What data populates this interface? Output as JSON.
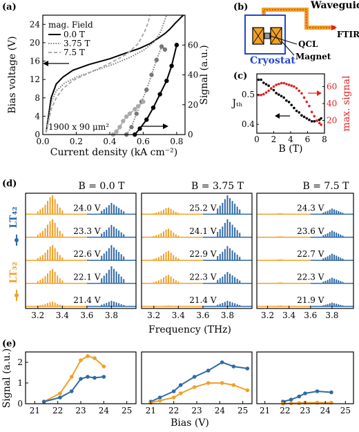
{
  "panel_labels": {
    "a": "(a)",
    "b": "(b)",
    "c": "(c)",
    "d": "(d)",
    "e": "(e)"
  },
  "chart_data": [
    {
      "id": "a",
      "type": "line",
      "xlabel": "Current density (kA cm⁻²)",
      "ylabel_left": "Bias voltage (V)",
      "ylabel_right": "Signal (a.u.)",
      "xlim": [
        0,
        0.85
      ],
      "ylim_left": [
        0,
        26
      ],
      "ylim_right": [
        0,
        80
      ],
      "xticks": [
        0.0,
        0.2,
        0.4,
        0.6,
        0.8
      ],
      "xtick_labels": [
        "0.0",
        "0.2",
        "0.4",
        "0.6",
        "0.8"
      ],
      "yticks_left": [
        0,
        4,
        8,
        12,
        16,
        20,
        24
      ],
      "yticks_right": [
        0,
        20,
        40,
        60
      ],
      "legend_title": "mag. Field",
      "annotation": "1900 x 90 μm²",
      "series": [
        {
          "name": "0.0 T",
          "color": "#000000",
          "dash": "solid",
          "axis": "left",
          "x": [
            0.02,
            0.05,
            0.08,
            0.12,
            0.18,
            0.28,
            0.4,
            0.5,
            0.58,
            0.64,
            0.69,
            0.73,
            0.76,
            0.79,
            0.82,
            0.84
          ],
          "y": [
            0.5,
            8,
            11,
            12.5,
            14,
            15.3,
            16.5,
            17.8,
            18.8,
            19.8,
            21,
            22,
            23,
            24.2,
            25.3,
            26
          ]
        },
        {
          "name": "3.75 T",
          "color": "#777777",
          "dash": "dotted",
          "axis": "left",
          "x": [
            0.02,
            0.05,
            0.08,
            0.13,
            0.2,
            0.3,
            0.42,
            0.52,
            0.6,
            0.66,
            0.7,
            0.72,
            0.74
          ],
          "y": [
            0.5,
            7,
            9.5,
            11.2,
            12.5,
            13.8,
            15.3,
            16.8,
            18.3,
            20,
            22,
            24,
            26
          ]
        },
        {
          "name": "7.5 T",
          "color": "#aaaaaa",
          "dash": "dashed",
          "axis": "left",
          "x": [
            0.02,
            0.05,
            0.08,
            0.12,
            0.18,
            0.28,
            0.4,
            0.5,
            0.57,
            0.61,
            0.63,
            0.64
          ],
          "y": [
            0.5,
            5.5,
            8,
            10,
            11.8,
            13.5,
            15.5,
            17.5,
            19.8,
            22.5,
            24.5,
            26
          ]
        },
        {
          "name": "0.0 T signal",
          "color": "#000000",
          "dash": "solid",
          "axis": "right",
          "marker": true,
          "x": [
            0.55,
            0.58,
            0.62,
            0.66,
            0.7,
            0.74,
            0.77,
            0.8
          ],
          "y": [
            0,
            4,
            10,
            18,
            27,
            36,
            46,
            60
          ]
        },
        {
          "name": "3.75 T signal",
          "color": "#777777",
          "dash": "dotted",
          "axis": "right",
          "marker": true,
          "x": [
            0.5,
            0.53,
            0.56,
            0.59,
            0.62,
            0.65,
            0.68,
            0.71,
            0.73
          ],
          "y": [
            0,
            5,
            14,
            22,
            30,
            40,
            50,
            59,
            57
          ]
        },
        {
          "name": "7.5 T signal",
          "color": "#aaaaaa",
          "dash": "dashed",
          "axis": "right",
          "marker": true,
          "x": [
            0.42,
            0.44,
            0.46,
            0.48,
            0.5,
            0.52,
            0.55,
            0.57,
            0.6
          ],
          "y": [
            0,
            2,
            5,
            9,
            12,
            14,
            17,
            19,
            22
          ]
        }
      ]
    },
    {
      "id": "c",
      "type": "scatter",
      "xlabel": "B (T)",
      "ylabel_left": "Jₜₕ",
      "ylabel_right": "max. signal",
      "xlim": [
        0,
        8
      ],
      "ylim_left": [
        0.37,
        0.57
      ],
      "ylim_right": [
        5,
        75
      ],
      "xticks": [
        0,
        2,
        4,
        6,
        8
      ],
      "yticks_left": [
        0.4,
        0.5
      ],
      "yticks_right": [
        20,
        40,
        60
      ],
      "series": [
        {
          "name": "Jth",
          "color": "#000000",
          "axis": "left",
          "x": [
            0.2,
            0.5,
            0.8,
            1.1,
            1.4,
            1.7,
            2.0,
            2.3,
            2.6,
            2.9,
            3.2,
            3.5,
            3.8,
            4.1,
            4.4,
            4.7,
            5.0,
            5.3,
            5.6,
            5.9,
            6.2,
            6.5,
            6.8,
            7.1,
            7.4,
            7.6
          ],
          "y": [
            0.55,
            0.55,
            0.54,
            0.535,
            0.53,
            0.52,
            0.515,
            0.505,
            0.5,
            0.495,
            0.49,
            0.48,
            0.475,
            0.465,
            0.455,
            0.445,
            0.44,
            0.43,
            0.425,
            0.42,
            0.415,
            0.41,
            0.41,
            0.412,
            0.415,
            0.42
          ]
        },
        {
          "name": "max. signal",
          "color": "#e02020",
          "axis": "right",
          "x": [
            0.2,
            0.5,
            0.8,
            1.1,
            1.4,
            1.7,
            2.0,
            2.3,
            2.6,
            2.9,
            3.2,
            3.5,
            3.8,
            4.1,
            4.4,
            4.7,
            5.0,
            5.3,
            5.6,
            5.9,
            6.2,
            6.5,
            6.8,
            7.1,
            7.4,
            7.6
          ],
          "y": [
            50,
            50,
            51,
            53,
            55,
            58,
            60,
            62,
            63,
            64,
            64,
            63,
            62,
            61,
            60,
            58,
            55,
            52,
            47,
            42,
            37,
            30,
            25,
            20,
            17,
            15
          ]
        }
      ]
    },
    {
      "id": "d",
      "type": "spectra",
      "xlabel": "Frequency (THz)",
      "xlim": [
        3.1,
        4.0
      ],
      "xticks": [
        3.2,
        3.4,
        3.6,
        3.8
      ],
      "series_labels": [
        "LT₄₂",
        "LT₃₂"
      ],
      "colors": {
        "LT42": "#2f6aa6",
        "LT32": "#f0a028"
      },
      "panels": [
        {
          "title": "B = 0.0 T",
          "biases": [
            "24.0 V",
            "23.3 V",
            "22.6 V",
            "22.1 V",
            "21.4 V"
          ],
          "orange_amp": [
            1.0,
            0.95,
            0.8,
            0.75,
            0.25
          ],
          "blue_amp": [
            0.6,
            0.65,
            0.8,
            0.9,
            0.3
          ]
        },
        {
          "title": "B = 3.75 T",
          "biases": [
            "25.2 V",
            "24.1 V",
            "22.9 V",
            "22.3 V",
            "21.4 V"
          ],
          "orange_amp": [
            0.35,
            0.45,
            0.5,
            0.45,
            0.05
          ],
          "blue_amp": [
            1.0,
            0.95,
            0.75,
            0.6,
            0.3
          ]
        },
        {
          "title": "B = 7.5 T",
          "biases": [
            "24.3 V",
            "23.6 V",
            "22.7 V",
            "22.3 V",
            "21.9 V"
          ],
          "orange_amp": [
            0.05,
            0.05,
            0.05,
            0.05,
            0.05
          ],
          "blue_amp": [
            0.3,
            0.35,
            0.35,
            0.3,
            0.2
          ]
        }
      ]
    },
    {
      "id": "e",
      "type": "line",
      "xlabel": "Bias (V)",
      "ylabel": "Signal (a.u.)",
      "xticks": [
        21,
        22,
        23,
        24,
        25
      ],
      "yticks": [
        0,
        1,
        2
      ],
      "ylim": [
        0,
        2.5
      ],
      "panels": [
        {
          "xlim": [
            20.6,
            25.4
          ],
          "series": [
            {
              "name": "LT32",
              "color": "#f0a028",
              "x": [
                21.4,
                22.1,
                22.6,
                23.0,
                23.3,
                23.6,
                24.0
              ],
              "y": [
                0.1,
                0.5,
                1.3,
                2.1,
                2.3,
                2.2,
                1.8
              ]
            },
            {
              "name": "LT42",
              "color": "#2f6aa6",
              "x": [
                21.4,
                22.1,
                22.6,
                23.0,
                23.3,
                23.6,
                24.0
              ],
              "y": [
                0.1,
                0.3,
                0.6,
                1.2,
                1.3,
                1.25,
                1.3
              ]
            }
          ]
        },
        {
          "xlim": [
            20.6,
            25.4
          ],
          "series": [
            {
              "name": "LT42",
              "color": "#2f6aa6",
              "x": [
                21.0,
                21.4,
                22.0,
                22.3,
                22.9,
                23.5,
                24.1,
                24.6,
                25.2
              ],
              "y": [
                0.1,
                0.3,
                0.6,
                0.9,
                1.3,
                1.6,
                2.0,
                1.8,
                1.7
              ]
            },
            {
              "name": "LT32",
              "color": "#f0a028",
              "x": [
                21.0,
                21.4,
                22.0,
                22.3,
                22.9,
                23.5,
                24.1,
                24.6,
                25.2
              ],
              "y": [
                0.05,
                0.15,
                0.3,
                0.5,
                0.8,
                1.0,
                1.0,
                0.9,
                0.65
              ]
            }
          ]
        },
        {
          "xlim": [
            20.6,
            25.4
          ],
          "series": [
            {
              "name": "LT42",
              "color": "#2f6aa6",
              "x": [
                21.9,
                22.3,
                22.7,
                23.0,
                23.6,
                24.3
              ],
              "y": [
                0.1,
                0.2,
                0.35,
                0.5,
                0.6,
                0.55
              ]
            },
            {
              "name": "LT32",
              "color": "#f0a028",
              "x": [
                21.9,
                22.3,
                22.7,
                23.0,
                23.6,
                24.3
              ],
              "y": [
                0.0,
                0.02,
                0.03,
                0.05,
                0.05,
                0.05
              ]
            }
          ]
        }
      ]
    }
  ],
  "schematic": {
    "waveguide": "Waveguide",
    "ftir": "FTIR",
    "qcl": "QCL",
    "magnet": "Magnet",
    "cryostat": "Cryostat"
  }
}
